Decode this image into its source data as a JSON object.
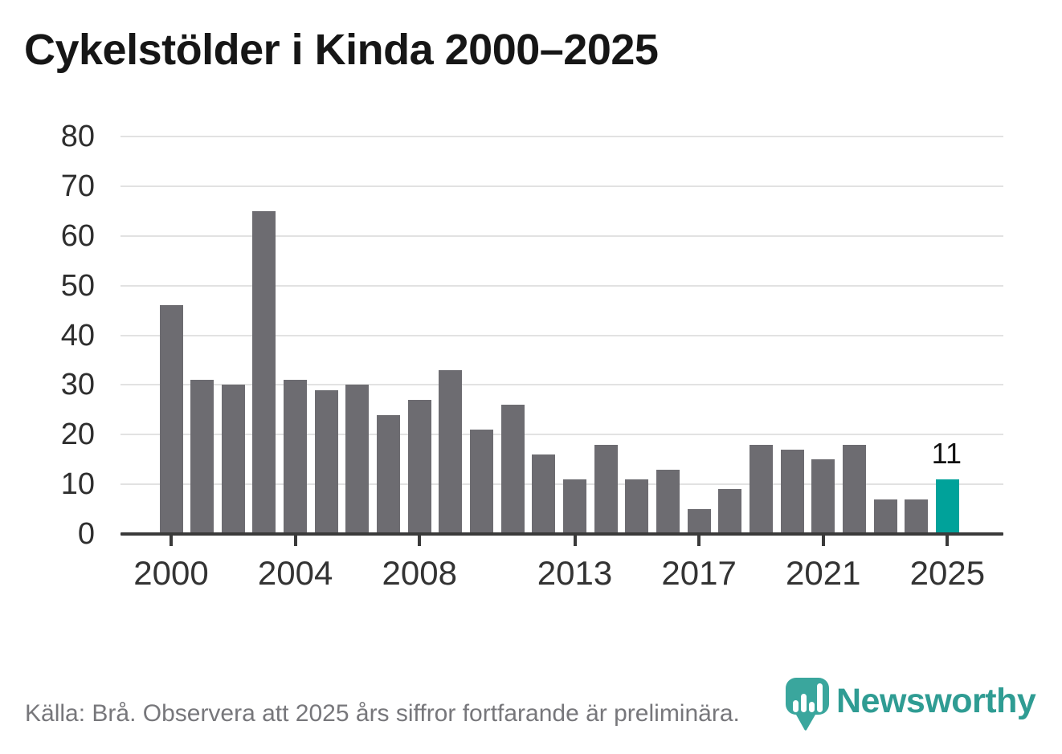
{
  "title": "Cykelstölder i Kinda 2000–2025",
  "footer": {
    "source_text": "Källa: Brå. Observera att 2025 års siffror fortfarande är preliminära."
  },
  "logo": {
    "name": "Newsworthy",
    "wordmark": "Newsworthy",
    "mark_color": "#3aa69d",
    "wordmark_color": "#2f9c93",
    "bar_chart_icon": "white-bars-in-teal-pin"
  },
  "chart_data": {
    "type": "bar",
    "title": "Cykelstölder i Kinda 2000–2025",
    "x": [
      2000,
      2001,
      2002,
      2003,
      2004,
      2005,
      2006,
      2007,
      2008,
      2009,
      2010,
      2011,
      2012,
      2013,
      2014,
      2015,
      2016,
      2017,
      2018,
      2019,
      2020,
      2021,
      2022,
      2023,
      2024,
      2025
    ],
    "values": [
      46,
      31,
      30,
      65,
      31,
      29,
      30,
      24,
      27,
      33,
      21,
      26,
      16,
      11,
      18,
      11,
      13,
      5,
      9,
      18,
      17,
      15,
      18,
      7,
      7,
      11
    ],
    "xlabel": "",
    "ylabel": "",
    "ylim": [
      0,
      80
    ],
    "yticks": [
      0,
      10,
      20,
      30,
      40,
      50,
      60,
      70,
      80
    ],
    "xticks": [
      2000,
      2004,
      2008,
      2013,
      2017,
      2021,
      2025
    ],
    "grid": "horizontal",
    "legend": "none",
    "bar_color": "#6d6c71",
    "gridline_color": "#e2e2e2",
    "axis_color": "#3a3a3a",
    "highlight": {
      "year": 2025,
      "color": "#00a29a",
      "label": "11"
    }
  }
}
